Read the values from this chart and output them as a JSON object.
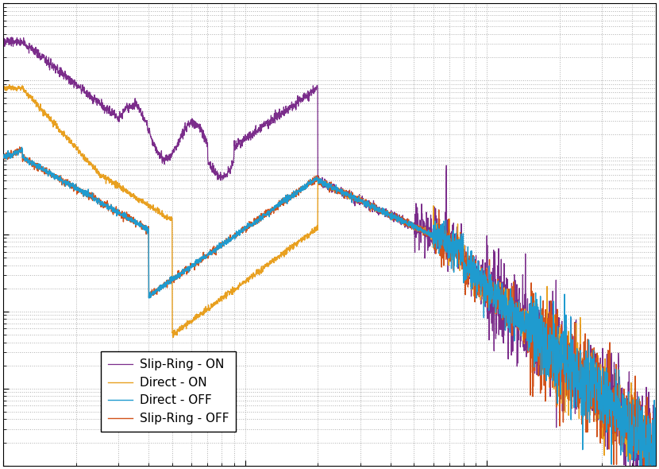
{
  "legend_labels": [
    "Direct - OFF",
    "Slip-Ring - OFF",
    "Direct - ON",
    "Slip-Ring - ON"
  ],
  "legend_colors": [
    "#1f9bcf",
    "#d2521a",
    "#e8a020",
    "#7b2d8b"
  ],
  "background_color": "#ffffff",
  "grid_color": "#b0b0b0",
  "figsize": [
    8.3,
    5.9
  ],
  "dpi": 100,
  "xlim": [
    1,
    500
  ],
  "ylim": [
    1e-10,
    0.0001
  ]
}
